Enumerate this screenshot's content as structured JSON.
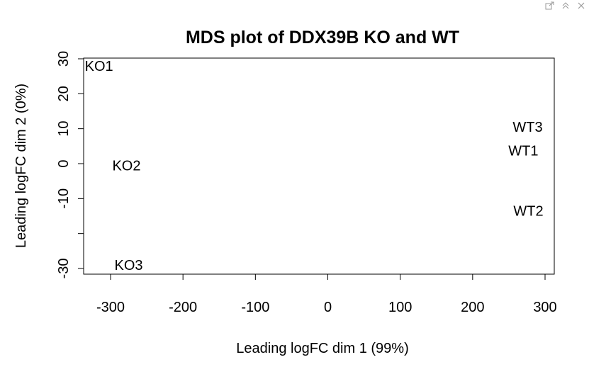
{
  "toolbar": {
    "export_icon": "export-icon",
    "collapse_icon": "collapse-icon",
    "close_icon": "close-icon"
  },
  "chart_data": {
    "type": "scatter",
    "title": "MDS plot of DDX39B KO and WT",
    "xlabel": "Leading logFC dim 1 (99%)",
    "ylabel": "Leading logFC dim 2 (0%)",
    "xlim": [
      -300,
      300
    ],
    "ylim": [
      -30,
      30
    ],
    "xticks": [
      -300,
      -200,
      -100,
      0,
      100,
      200,
      300
    ],
    "yticks": [
      -30,
      -20,
      -10,
      0,
      10,
      20,
      30
    ],
    "ytick_labels": [
      "-30",
      "",
      "-10",
      "0",
      "10",
      "20",
      "30"
    ],
    "points": [
      {
        "label": "KO1",
        "x": -316,
        "y": 28
      },
      {
        "label": "KO2",
        "x": -278,
        "y": -0.5
      },
      {
        "label": "KO3",
        "x": -275,
        "y": -29
      },
      {
        "label": "WT3",
        "x": 276,
        "y": 10.5
      },
      {
        "label": "WT1",
        "x": 270,
        "y": 3.7
      },
      {
        "label": "WT2",
        "x": 277,
        "y": -13.5
      }
    ],
    "grid": false
  }
}
